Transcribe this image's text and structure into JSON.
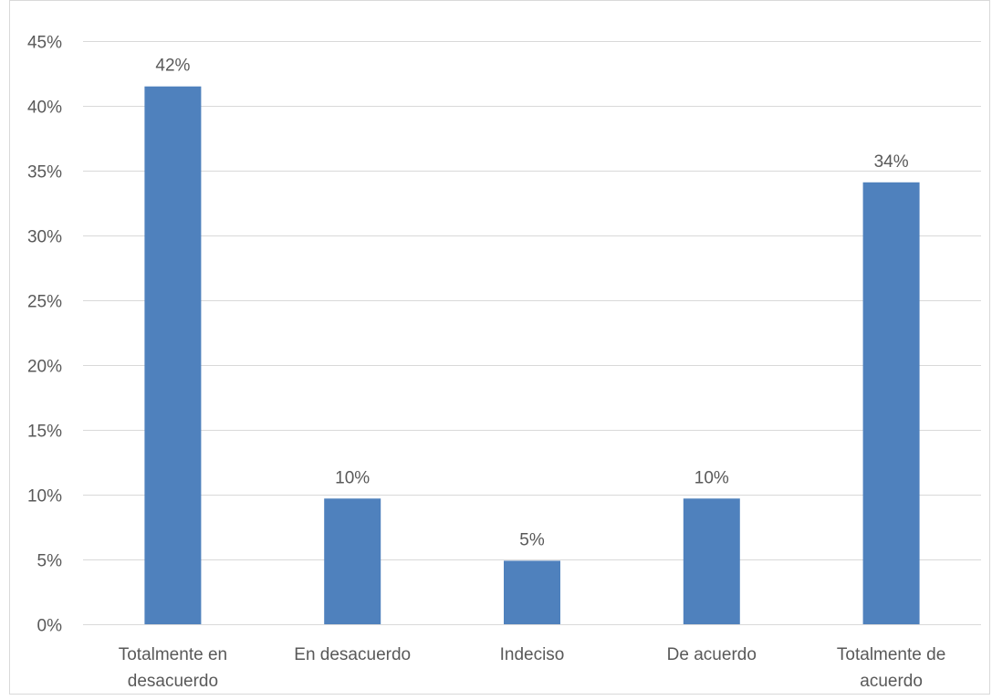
{
  "chart_data": {
    "type": "bar",
    "title": "",
    "xlabel": "",
    "ylabel": "",
    "categories": [
      [
        "Totalmente en",
        "desacuerdo"
      ],
      [
        "En desacuerdo"
      ],
      [
        "Indeciso"
      ],
      [
        "De acuerdo"
      ],
      [
        "Totalmente de",
        "acuerdo"
      ]
    ],
    "values": [
      0.415,
      0.097,
      0.049,
      0.097,
      0.341
    ],
    "data_labels": [
      "42%",
      "10%",
      "5%",
      "10%",
      "34%"
    ],
    "ylim": [
      0,
      0.45
    ],
    "yticks": [
      0,
      0.05,
      0.1,
      0.15,
      0.2,
      0.25,
      0.3,
      0.35,
      0.4,
      0.45
    ],
    "ytick_labels": [
      "0%",
      "5%",
      "10%",
      "15%",
      "20%",
      "25%",
      "30%",
      "35%",
      "40%",
      "45%"
    ],
    "grid": true,
    "legend": "none",
    "colors": {
      "bar": "#4f81bd",
      "grid": "#d9d9d9",
      "text": "#595959",
      "border": "#d9d9d9"
    }
  }
}
